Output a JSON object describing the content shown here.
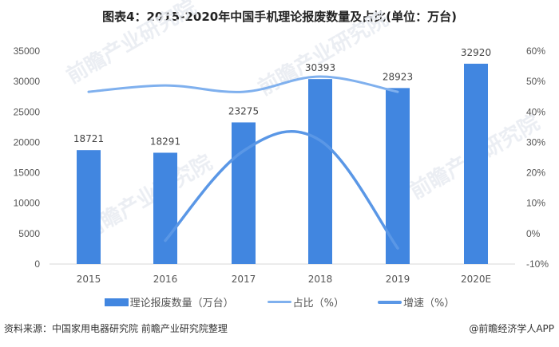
{
  "title": "图表4：2015-2020年中国手机理论报废数量及占比(单位：万台)",
  "chart_data": {
    "type": "bar",
    "title": "图表4：2015-2020年中国手机理论报废数量及占比(单位：万台)",
    "categories": [
      "2015",
      "2016",
      "2017",
      "2018",
      "2019",
      "2020E"
    ],
    "series": [
      {
        "name": "理论报废数量（万台）",
        "type": "bar",
        "axis": "left",
        "values": [
          18721,
          18291,
          23275,
          30393,
          28923,
          32920
        ],
        "color": "#4186e0"
      },
      {
        "name": "占比（%）",
        "type": "line",
        "axis": "right",
        "values": [
          46.6,
          48.7,
          46.6,
          51.6,
          46.6,
          null
        ],
        "color": "#7fb0ee"
      },
      {
        "name": "增速（%）",
        "type": "line",
        "axis": "right",
        "values": [
          null,
          -2.3,
          27.2,
          30.6,
          -4.8,
          null
        ],
        "color": "#5a97e6"
      }
    ],
    "left_axis": {
      "ylim": [
        0,
        35000
      ],
      "ticks": [
        "0",
        "5000",
        "10000",
        "15000",
        "20000",
        "25000",
        "30000",
        "35000"
      ]
    },
    "right_axis": {
      "ylim": [
        -10,
        60
      ],
      "ticks": [
        "-10%",
        "0%",
        "10%",
        "20%",
        "30%",
        "40%",
        "50%",
        "60%"
      ]
    },
    "xlabel": "",
    "ylabel": "",
    "grid": false,
    "legend_position": "bottom"
  },
  "legend": {
    "bar": "理论报废数量（万台）",
    "share": "占比（%）",
    "growth": "增速（%）"
  },
  "source": "资料来源：中国家用电器研究院 前瞻产业研究院整理",
  "credit": "@前瞻经济学人APP",
  "watermark": "前瞻产业研究院"
}
